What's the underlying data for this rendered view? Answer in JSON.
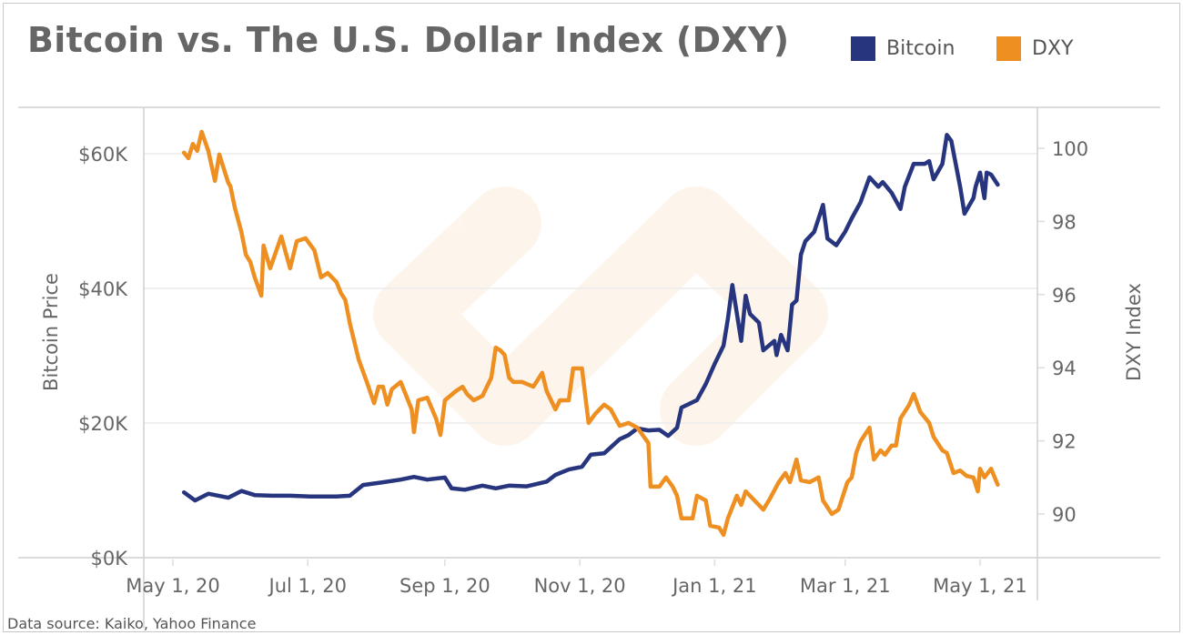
{
  "chart_data": {
    "type": "line",
    "title": "Bitcoin vs. The U.S. Dollar Index (DXY)",
    "source": "Data source: Kaiko, Yahoo Finance",
    "x_unit": "days since May 1, 2020",
    "xticks": [
      {
        "day": 0,
        "label": "May 1, 20"
      },
      {
        "day": 61,
        "label": "Jul 1, 20"
      },
      {
        "day": 123,
        "label": "Sep 1, 20"
      },
      {
        "day": 184,
        "label": "Nov 1, 20"
      },
      {
        "day": 245,
        "label": "Jan 1, 21"
      },
      {
        "day": 304,
        "label": "Mar 1, 21"
      },
      {
        "day": 365,
        "label": "May 1, 21"
      }
    ],
    "ylabel_left": "Bitcoin Price",
    "ylim_left": [
      0,
      66000
    ],
    "yticks_left": [
      {
        "v": 0,
        "label": "$0K"
      },
      {
        "v": 20000,
        "label": "$20K"
      },
      {
        "v": 40000,
        "label": "$40K"
      },
      {
        "v": 60000,
        "label": "$60K"
      }
    ],
    "ylabel_right": "DXY Index",
    "ylim_right": [
      89,
      101
    ],
    "yticks_right": [
      {
        "v": 90,
        "label": "90"
      },
      {
        "v": 92,
        "label": "92"
      },
      {
        "v": 94,
        "label": "94"
      },
      {
        "v": 96,
        "label": "96"
      },
      {
        "v": 98,
        "label": "98"
      },
      {
        "v": 100,
        "label": "100"
      }
    ],
    "legend_position": "top-right",
    "series": [
      {
        "name": "Bitcoin",
        "axis": "left",
        "color": "#27357f",
        "points": [
          [
            5,
            9700
          ],
          [
            10,
            8500
          ],
          [
            16,
            9500
          ],
          [
            25,
            8900
          ],
          [
            31,
            9900
          ],
          [
            37,
            9300
          ],
          [
            45,
            9200
          ],
          [
            53,
            9200
          ],
          [
            62,
            9100
          ],
          [
            74,
            9100
          ],
          [
            80,
            9200
          ],
          [
            86,
            10800
          ],
          [
            95,
            11200
          ],
          [
            103,
            11600
          ],
          [
            109,
            12000
          ],
          [
            115,
            11600
          ],
          [
            123,
            11900
          ],
          [
            126,
            10300
          ],
          [
            132,
            10100
          ],
          [
            140,
            10700
          ],
          [
            146,
            10300
          ],
          [
            152,
            10700
          ],
          [
            160,
            10600
          ],
          [
            169,
            11300
          ],
          [
            173,
            12300
          ],
          [
            179,
            13100
          ],
          [
            185,
            13500
          ],
          [
            189,
            15300
          ],
          [
            195,
            15500
          ],
          [
            202,
            17600
          ],
          [
            206,
            18200
          ],
          [
            210,
            19200
          ],
          [
            215,
            18900
          ],
          [
            220,
            19000
          ],
          [
            224,
            18100
          ],
          [
            228,
            19300
          ],
          [
            230,
            22300
          ],
          [
            237,
            23400
          ],
          [
            241,
            25800
          ],
          [
            245,
            28800
          ],
          [
            249,
            31500
          ],
          [
            251,
            35500
          ],
          [
            253,
            40500
          ],
          [
            257,
            32200
          ],
          [
            259,
            38900
          ],
          [
            261,
            36200
          ],
          [
            265,
            34900
          ],
          [
            267,
            30800
          ],
          [
            272,
            32200
          ],
          [
            273,
            30100
          ],
          [
            275,
            33100
          ],
          [
            278,
            30800
          ],
          [
            280,
            37600
          ],
          [
            282,
            38200
          ],
          [
            284,
            45000
          ],
          [
            286,
            47000
          ],
          [
            290,
            48400
          ],
          [
            292,
            50400
          ],
          [
            294,
            52400
          ],
          [
            296,
            47400
          ],
          [
            300,
            46400
          ],
          [
            304,
            48400
          ],
          [
            307,
            50400
          ],
          [
            311,
            52800
          ],
          [
            315,
            56500
          ],
          [
            319,
            55100
          ],
          [
            321,
            55800
          ],
          [
            325,
            54200
          ],
          [
            329,
            51800
          ],
          [
            331,
            55100
          ],
          [
            335,
            58500
          ],
          [
            340,
            58500
          ],
          [
            342,
            58900
          ],
          [
            344,
            56200
          ],
          [
            348,
            58500
          ],
          [
            350,
            62800
          ],
          [
            352,
            61900
          ],
          [
            356,
            55100
          ],
          [
            358,
            51100
          ],
          [
            362,
            53400
          ],
          [
            363,
            55100
          ],
          [
            365,
            57200
          ],
          [
            367,
            53400
          ],
          [
            368,
            57200
          ],
          [
            370,
            56900
          ],
          [
            373,
            55400
          ]
        ]
      },
      {
        "name": "DXY",
        "axis": "right",
        "color": "#ee8f22",
        "points": [
          [
            5,
            99.88
          ],
          [
            7,
            99.73
          ],
          [
            9,
            100.12
          ],
          [
            11,
            99.93
          ],
          [
            13,
            100.45
          ],
          [
            16,
            99.93
          ],
          [
            19,
            99.11
          ],
          [
            21,
            99.83
          ],
          [
            25,
            99.06
          ],
          [
            26,
            98.96
          ],
          [
            28,
            98.38
          ],
          [
            31,
            97.71
          ],
          [
            33,
            97.09
          ],
          [
            35,
            96.89
          ],
          [
            37,
            96.47
          ],
          [
            40,
            95.97
          ],
          [
            41,
            97.34
          ],
          [
            44,
            96.72
          ],
          [
            49,
            97.59
          ],
          [
            53,
            96.72
          ],
          [
            56,
            97.46
          ],
          [
            60,
            97.54
          ],
          [
            64,
            97.21
          ],
          [
            67,
            96.47
          ],
          [
            70,
            96.59
          ],
          [
            74,
            96.34
          ],
          [
            76,
            96.04
          ],
          [
            78,
            95.85
          ],
          [
            80,
            95.22
          ],
          [
            84,
            94.23
          ],
          [
            88,
            93.56
          ],
          [
            91,
            93.03
          ],
          [
            93,
            93.48
          ],
          [
            95,
            93.48
          ],
          [
            97,
            92.99
          ],
          [
            99,
            93.41
          ],
          [
            103,
            93.61
          ],
          [
            108,
            92.86
          ],
          [
            109,
            92.24
          ],
          [
            111,
            93.11
          ],
          [
            115,
            93.18
          ],
          [
            119,
            92.61
          ],
          [
            121,
            92.16
          ],
          [
            123,
            93.11
          ],
          [
            128,
            93.36
          ],
          [
            131,
            93.48
          ],
          [
            133,
            93.28
          ],
          [
            136,
            93.11
          ],
          [
            140,
            93.23
          ],
          [
            144,
            93.73
          ],
          [
            146,
            94.55
          ],
          [
            148,
            94.48
          ],
          [
            150,
            94.35
          ],
          [
            152,
            93.73
          ],
          [
            154,
            93.61
          ],
          [
            158,
            93.61
          ],
          [
            163,
            93.48
          ],
          [
            167,
            93.86
          ],
          [
            169,
            93.36
          ],
          [
            173,
            92.86
          ],
          [
            175,
            93.11
          ],
          [
            179,
            93.11
          ],
          [
            181,
            93.98
          ],
          [
            185,
            93.98
          ],
          [
            188,
            92.49
          ],
          [
            191,
            92.74
          ],
          [
            195,
            92.99
          ],
          [
            198,
            92.86
          ],
          [
            202,
            92.41
          ],
          [
            206,
            92.49
          ],
          [
            210,
            92.36
          ],
          [
            215,
            91.94
          ],
          [
            216,
            90.75
          ],
          [
            220,
            90.75
          ],
          [
            223,
            91.0
          ],
          [
            226,
            90.75
          ],
          [
            228,
            90.5
          ],
          [
            230,
            89.88
          ],
          [
            235,
            89.88
          ],
          [
            237,
            90.5
          ],
          [
            241,
            90.37
          ],
          [
            243,
            89.68
          ],
          [
            247,
            89.63
          ],
          [
            249,
            89.43
          ],
          [
            251,
            89.88
          ],
          [
            255,
            90.5
          ],
          [
            257,
            90.25
          ],
          [
            259,
            90.62
          ],
          [
            263,
            90.37
          ],
          [
            267,
            90.12
          ],
          [
            270,
            90.42
          ],
          [
            274,
            90.87
          ],
          [
            277,
            91.12
          ],
          [
            279,
            90.87
          ],
          [
            282,
            91.49
          ],
          [
            284,
            90.92
          ],
          [
            288,
            90.87
          ],
          [
            292,
            91.0
          ],
          [
            294,
            90.37
          ],
          [
            298,
            90.0
          ],
          [
            301,
            90.12
          ],
          [
            305,
            90.87
          ],
          [
            307,
            91.0
          ],
          [
            309,
            91.67
          ],
          [
            311,
            91.99
          ],
          [
            315,
            92.36
          ],
          [
            317,
            91.49
          ],
          [
            320,
            91.74
          ],
          [
            322,
            91.62
          ],
          [
            325,
            91.87
          ],
          [
            327,
            91.87
          ],
          [
            329,
            92.61
          ],
          [
            333,
            92.99
          ],
          [
            335,
            93.28
          ],
          [
            338,
            92.79
          ],
          [
            342,
            92.49
          ],
          [
            344,
            92.11
          ],
          [
            348,
            91.74
          ],
          [
            350,
            91.67
          ],
          [
            353,
            91.12
          ],
          [
            356,
            91.19
          ],
          [
            359,
            91.04
          ],
          [
            362,
            91.0
          ],
          [
            364,
            90.62
          ],
          [
            365,
            91.24
          ],
          [
            367,
            91.0
          ],
          [
            370,
            91.24
          ],
          [
            373,
            90.8
          ]
        ]
      }
    ]
  }
}
